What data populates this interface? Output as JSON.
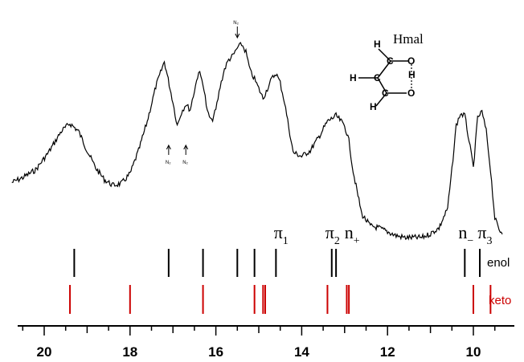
{
  "chart_data": {
    "type": "line",
    "title": "",
    "xlabel": "",
    "ylabel": "",
    "xlim": [
      20.6,
      9.1
    ],
    "x_ticks": [
      20,
      18,
      16,
      14,
      12,
      10
    ],
    "x_tick_labels": [
      "20",
      "18",
      "16",
      "14",
      "12",
      "10"
    ],
    "spectrum": {
      "x": [
        20.8,
        20.5,
        20.2,
        19.9,
        19.6,
        19.4,
        19.2,
        19.0,
        18.8,
        18.6,
        18.4,
        18.2,
        18.0,
        17.8,
        17.6,
        17.4,
        17.2,
        17.0,
        16.9,
        16.8,
        16.7,
        16.6,
        16.5,
        16.4,
        16.3,
        16.2,
        16.1,
        16.0,
        15.9,
        15.8,
        15.7,
        15.6,
        15.5,
        15.4,
        15.3,
        15.2,
        15.1,
        15.0,
        14.9,
        14.8,
        14.7,
        14.6,
        14.5,
        14.4,
        14.3,
        14.2,
        14.0,
        13.8,
        13.6,
        13.4,
        13.2,
        13.0,
        12.9,
        12.8,
        12.6,
        12.4,
        12.2,
        12.0,
        11.8,
        11.6,
        11.4,
        11.2,
        11.0,
        10.8,
        10.6,
        10.5,
        10.4,
        10.3,
        10.2,
        10.1,
        10.0,
        9.9,
        9.8,
        9.7,
        9.6,
        9.5,
        9.4,
        9.3,
        9.2
      ],
      "y": [
        0.28,
        0.31,
        0.35,
        0.44,
        0.55,
        0.59,
        0.55,
        0.45,
        0.36,
        0.3,
        0.27,
        0.28,
        0.33,
        0.45,
        0.6,
        0.78,
        0.91,
        0.7,
        0.58,
        0.65,
        0.69,
        0.66,
        0.76,
        0.86,
        0.8,
        0.65,
        0.6,
        0.66,
        0.78,
        0.87,
        0.92,
        0.94,
        0.98,
        1.0,
        0.96,
        0.86,
        0.82,
        0.77,
        0.72,
        0.77,
        0.82,
        0.85,
        0.8,
        0.7,
        0.57,
        0.44,
        0.42,
        0.45,
        0.52,
        0.6,
        0.63,
        0.58,
        0.5,
        0.34,
        0.12,
        0.06,
        0.05,
        0.03,
        0.01,
        0.0,
        0.0,
        0.0,
        0.02,
        0.05,
        0.15,
        0.35,
        0.58,
        0.64,
        0.63,
        0.5,
        0.36,
        0.62,
        0.65,
        0.55,
        0.35,
        0.1,
        0.04,
        0.02,
        0.01
      ]
    },
    "enol_lines": [
      19.3,
      17.1,
      16.3,
      15.5,
      15.1,
      14.6,
      13.3,
      13.2,
      10.2,
      9.85
    ],
    "keto_lines": [
      19.4,
      18.0,
      16.3,
      15.1,
      14.9,
      14.85,
      13.4,
      12.95,
      12.9,
      10.0,
      9.6
    ],
    "row_labels": {
      "enol": "enol",
      "keto": "keto"
    },
    "orbital_labels": [
      {
        "base": "π",
        "sub": "1",
        "x": 14.5
      },
      {
        "base": "π",
        "sub": "2",
        "x": 13.3
      },
      {
        "base": "n",
        "sub": "+",
        "x": 12.85
      },
      {
        "base": "n",
        "sub": "−",
        "x": 10.2
      },
      {
        "base": "π",
        "sub": "3",
        "x": 9.75
      }
    ],
    "n2_markers": [
      {
        "label": "N₂",
        "x": 15.5,
        "dir": "down"
      },
      {
        "label": "N₂",
        "x": 17.1,
        "dir": "up"
      },
      {
        "label": "N₂",
        "x": 16.7,
        "dir": "up"
      }
    ],
    "colors": {
      "enol": "#000000",
      "keto": "#cc0000",
      "spectrum": "#000000",
      "keto_label": "#cc0000"
    },
    "molecule": {
      "name": "Hmal",
      "atoms": [
        "H",
        "C",
        "C",
        "H",
        "C",
        "O",
        "H",
        "O",
        "H"
      ]
    }
  }
}
